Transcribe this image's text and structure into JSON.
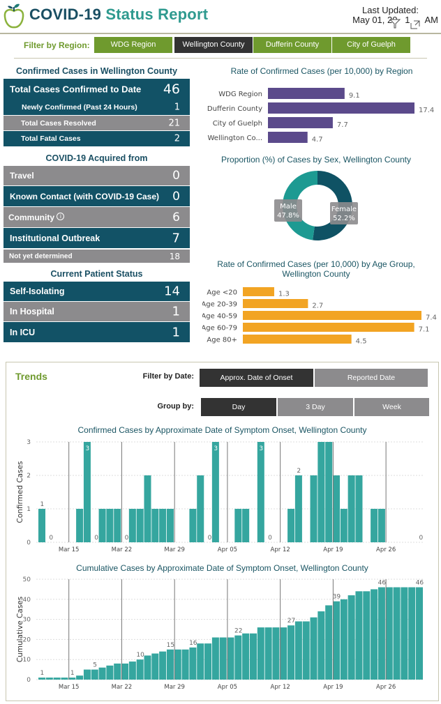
{
  "header": {
    "title_part1": "COVID-19",
    "title_part2": "Status Report",
    "last_updated_label": "Last Updated:",
    "last_updated_value": "May 01, 20   1      AM",
    "icons": [
      "apple-logo-icon",
      "filter-icon",
      "expand-icon"
    ]
  },
  "region_filter": {
    "label": "Filter by Region:",
    "options": [
      "WDG Region",
      "Wellington County",
      "Dufferin County",
      "City of Guelph"
    ],
    "selected": "Wellington County"
  },
  "confirmed": {
    "title": "Confirmed Cases in Wellington County",
    "rows": [
      {
        "label": "Total Cases Confirmed to Date",
        "value": "46"
      },
      {
        "label": "Newly Confirmed (Past 24 Hours)",
        "value": "1"
      },
      {
        "label": "Total Cases Resolved",
        "value": "21"
      },
      {
        "label": "Total Fatal Cases",
        "value": "2"
      }
    ]
  },
  "acquired": {
    "title": "COVID-19 Acquired from",
    "rows": [
      {
        "label": "Travel",
        "value": "0"
      },
      {
        "label": "Known Contact (with COVID-19 Case)",
        "value": "0"
      },
      {
        "label": "Community",
        "value": "6"
      },
      {
        "label": "Institutional Outbreak",
        "value": "7"
      },
      {
        "label": "Not yet determined",
        "value": "18"
      }
    ]
  },
  "patient_status": {
    "title": "Current Patient Status",
    "rows": [
      {
        "label": "Self-Isolating",
        "value": "14"
      },
      {
        "label": "In Hospital",
        "value": "1"
      },
      {
        "label": "In ICU",
        "value": "1"
      }
    ]
  },
  "trends": {
    "title": "Trends",
    "filter_date_label": "Filter by Date:",
    "filter_date_options": [
      "Approx. Date of Onset",
      "Reported Date"
    ],
    "filter_date_selected": "Approx. Date of Onset",
    "group_by_label": "Group by:",
    "group_by_options": [
      "Day",
      "3 Day",
      "Week"
    ],
    "group_by_selected": "Day"
  },
  "colors": {
    "teal_dark": "#125266",
    "grey": "#8c8b8d",
    "green": "#6f9a2e",
    "purple": "#5b4a8b",
    "orange": "#f2a423",
    "bar_teal": "#35a69f",
    "donut_male": "#1d9a92",
    "donut_female": "#0f5264"
  },
  "chart_data": [
    {
      "type": "bar",
      "orientation": "horizontal",
      "title": "Rate of Confirmed Cases (per 10,000) by Region",
      "categories": [
        "WDG Region",
        "Dufferin County",
        "City of Guelph",
        "Wellington Co..."
      ],
      "values": [
        9.1,
        17.4,
        7.7,
        4.7
      ],
      "data_labels": [
        "9.1",
        "17.4",
        "7.7",
        "4.7"
      ]
    },
    {
      "type": "pie",
      "variant": "donut",
      "title": "Proportion (%) of Cases by Sex, Wellington County",
      "categories": [
        "Female",
        "Male"
      ],
      "values": [
        52.2,
        47.8
      ],
      "data_labels": [
        "52.2%",
        "47.8%"
      ]
    },
    {
      "type": "bar",
      "orientation": "horizontal",
      "title": "Rate of Confirmed Cases (per 10,000) by Age Group, Wellington County",
      "title_lines": [
        "Rate of Confirmed Cases (per 10,000) by Age Group,",
        "Wellington County"
      ],
      "categories": [
        "Age <20",
        "Age 20-39",
        "Age 40-59",
        "Age 60-79",
        "Age 80+"
      ],
      "values": [
        1.3,
        2.7,
        7.4,
        7.1,
        4.5
      ],
      "data_labels": [
        "1.3",
        "2.7",
        "7.4",
        "7.1",
        "4.5"
      ]
    },
    {
      "type": "bar",
      "title": "Confirmed Cases by Approximate Date of Symptom Onset, Wellington County",
      "xlabel": "",
      "ylabel": "Confirmed Cases",
      "ylim": [
        0,
        3
      ],
      "yticks": [
        0,
        1,
        2,
        3
      ],
      "x_ticks": [
        "Mar 15",
        "Mar 22",
        "Mar 29",
        "Apr 05",
        "Apr 12",
        "Apr 19",
        "Apr 26"
      ],
      "x_tick_day_index": [
        4,
        11,
        18,
        25,
        32,
        39,
        46
      ],
      "x": [
        "Mar 11",
        "Mar 12",
        "Mar 13",
        "Mar 14",
        "Mar 15",
        "Mar 16",
        "Mar 17",
        "Mar 18",
        "Mar 19",
        "Mar 20",
        "Mar 21",
        "Mar 22",
        "Mar 23",
        "Mar 24",
        "Mar 25",
        "Mar 26",
        "Mar 27",
        "Mar 28",
        "Mar 29",
        "Mar 30",
        "Mar 31",
        "Apr 01",
        "Apr 02",
        "Apr 03",
        "Apr 04",
        "Apr 05",
        "Apr 06",
        "Apr 07",
        "Apr 08",
        "Apr 09",
        "Apr 10",
        "Apr 11",
        "Apr 12",
        "Apr 13",
        "Apr 14",
        "Apr 15",
        "Apr 16",
        "Apr 17",
        "Apr 18",
        "Apr 19",
        "Apr 20",
        "Apr 21",
        "Apr 22",
        "Apr 23",
        "Apr 24",
        "Apr 25",
        "Apr 26",
        "Apr 27",
        "Apr 28",
        "Apr 29",
        "Apr 30"
      ],
      "values": [
        1,
        0,
        0,
        0,
        0,
        1,
        3,
        0,
        1,
        1,
        1,
        0,
        1,
        1,
        2,
        1,
        1,
        1,
        0,
        0,
        1,
        2,
        0,
        3,
        0,
        0,
        1,
        1,
        0,
        3,
        0,
        0,
        0,
        1,
        2,
        0,
        2,
        3,
        3,
        2,
        1,
        2,
        2,
        0,
        1,
        1,
        0,
        0,
        0,
        0,
        0
      ],
      "data_labels": [
        {
          "index": 0,
          "text": "1",
          "position": "above"
        },
        {
          "index": 1,
          "text": "0"
        },
        {
          "index": 6,
          "text": "3",
          "position": "inside"
        },
        {
          "index": 7,
          "text": "0"
        },
        {
          "index": 11,
          "text": "0"
        },
        {
          "index": 22,
          "text": "0"
        },
        {
          "index": 23,
          "text": "3",
          "position": "inside"
        },
        {
          "index": 30,
          "text": "0"
        },
        {
          "index": 29,
          "text": "3",
          "position": "inside"
        },
        {
          "index": 34,
          "text": "2",
          "position": "above"
        },
        {
          "index": 50,
          "text": "0"
        }
      ]
    },
    {
      "type": "bar",
      "title": "Cumulative Cases by Approximate Date of Symptom Onset, Wellington County",
      "xlabel": "",
      "ylabel": "Cumulative Cases",
      "ylim": [
        0,
        50
      ],
      "yticks": [
        0,
        10,
        20,
        30,
        40,
        50
      ],
      "x_ticks": [
        "Mar 15",
        "Mar 22",
        "Mar 29",
        "Apr 05",
        "Apr 12",
        "Apr 19",
        "Apr 26"
      ],
      "x_tick_day_index": [
        4,
        11,
        18,
        25,
        32,
        39,
        46
      ],
      "values": [
        1,
        1,
        1,
        1,
        1,
        2,
        5,
        5,
        6,
        7,
        8,
        8,
        9,
        10,
        12,
        13,
        14,
        15,
        15,
        15,
        16,
        18,
        18,
        21,
        21,
        21,
        22,
        23,
        23,
        26,
        26,
        26,
        26,
        27,
        29,
        29,
        31,
        34,
        37,
        39,
        40,
        42,
        44,
        44,
        45,
        46,
        46,
        46,
        46,
        46,
        46
      ],
      "data_labels": [
        {
          "index": 0,
          "text": "1"
        },
        {
          "index": 4,
          "text": "1"
        },
        {
          "index": 7,
          "text": "5"
        },
        {
          "index": 13,
          "text": "10"
        },
        {
          "index": 17,
          "text": "15"
        },
        {
          "index": 20,
          "text": "16"
        },
        {
          "index": 26,
          "text": "22"
        },
        {
          "index": 33,
          "text": "27"
        },
        {
          "index": 39,
          "text": "39"
        },
        {
          "index": 45,
          "text": "46"
        },
        {
          "index": 50,
          "text": "46"
        }
      ]
    }
  ]
}
